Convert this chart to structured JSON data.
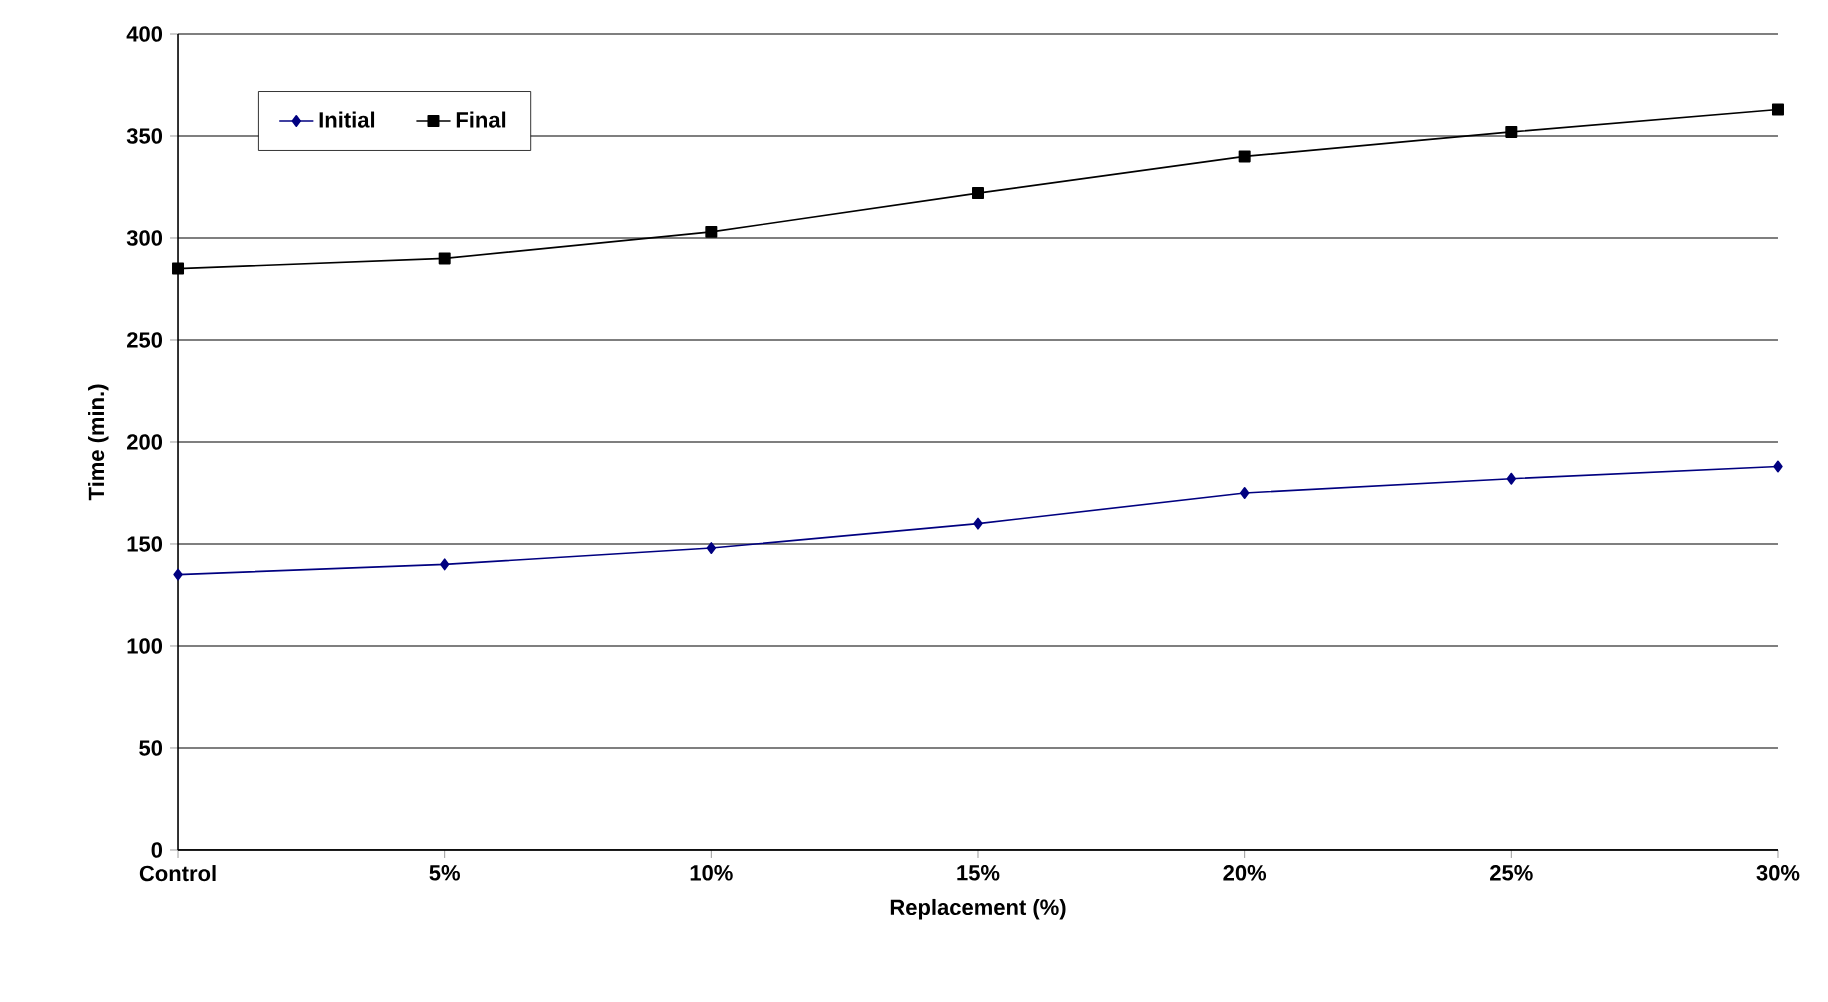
{
  "chart_data": {
    "type": "line",
    "xlabel": "Replacement (%)",
    "ylabel": "Time (min.)",
    "categories": [
      "Control",
      "5%",
      "10%",
      "15%",
      "20%",
      "25%",
      "30%"
    ],
    "series": [
      {
        "name": "Initial",
        "color": "#000080",
        "marker": "diamond",
        "values": [
          135,
          140,
          148,
          160,
          175,
          182,
          188
        ]
      },
      {
        "name": "Final",
        "color": "#000000",
        "marker": "square",
        "values": [
          285,
          290,
          303,
          322,
          340,
          352,
          363
        ]
      }
    ],
    "ylim": [
      0,
      400
    ],
    "yticks": [
      0,
      50,
      100,
      150,
      200,
      250,
      300,
      350,
      400
    ],
    "grid": "y",
    "legend": "top left",
    "line_style": "solid"
  }
}
